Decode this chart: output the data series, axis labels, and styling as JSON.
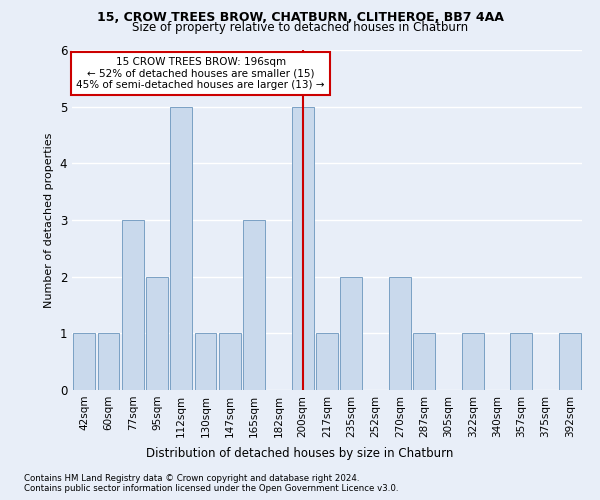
{
  "title1": "15, CROW TREES BROW, CHATBURN, CLITHEROE, BB7 4AA",
  "title2": "Size of property relative to detached houses in Chatburn",
  "xlabel": "Distribution of detached houses by size in Chatburn",
  "ylabel": "Number of detached properties",
  "categories": [
    "42sqm",
    "60sqm",
    "77sqm",
    "95sqm",
    "112sqm",
    "130sqm",
    "147sqm",
    "165sqm",
    "182sqm",
    "200sqm",
    "217sqm",
    "235sqm",
    "252sqm",
    "270sqm",
    "287sqm",
    "305sqm",
    "322sqm",
    "340sqm",
    "357sqm",
    "375sqm",
    "392sqm"
  ],
  "values": [
    1,
    1,
    3,
    2,
    5,
    1,
    1,
    3,
    0,
    5,
    1,
    2,
    0,
    2,
    1,
    0,
    1,
    0,
    1,
    0,
    1
  ],
  "bar_color": "#c9d9ec",
  "bar_edge_color": "#7aa0c4",
  "reference_line_color": "#cc0000",
  "annotation_text": "15 CROW TREES BROW: 196sqm\n← 52% of detached houses are smaller (15)\n45% of semi-detached houses are larger (13) →",
  "annotation_box_edge_color": "#cc0000",
  "ylim": [
    0,
    6
  ],
  "yticks": [
    0,
    1,
    2,
    3,
    4,
    5,
    6
  ],
  "footnote1": "Contains HM Land Registry data © Crown copyright and database right 2024.",
  "footnote2": "Contains public sector information licensed under the Open Government Licence v3.0.",
  "background_color": "#e8eef8",
  "grid_color": "#ffffff"
}
